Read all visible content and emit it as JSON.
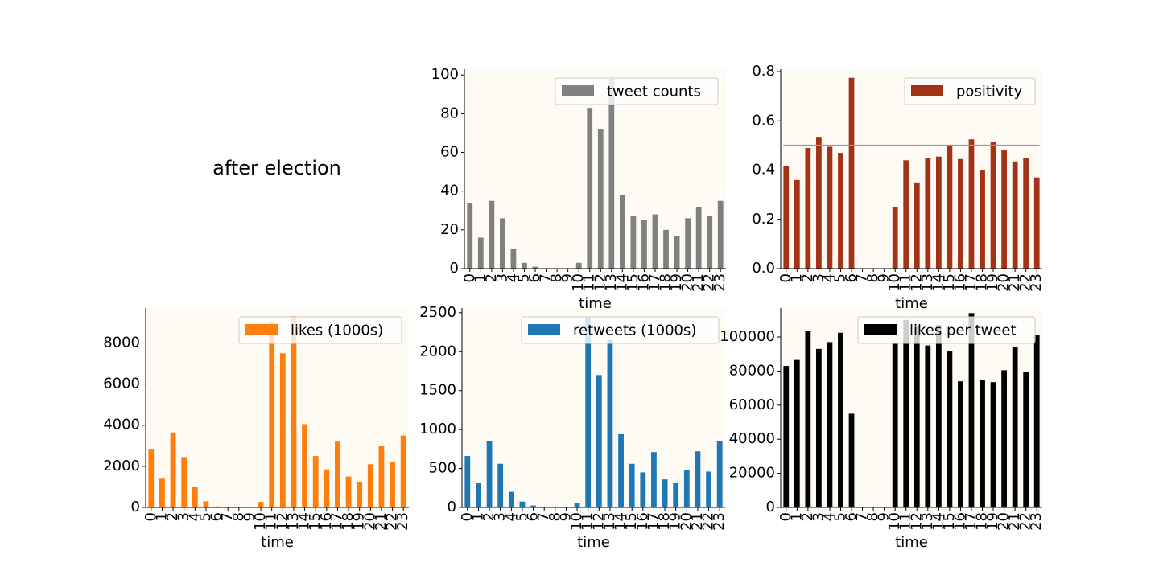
{
  "figure_title": "after election",
  "colors": {
    "plot_bg": "#fefbf5",
    "axis": "#000000",
    "counts": "#808080",
    "positivity": "#a33216",
    "likes": "#ff7f0e",
    "retweets": "#1f77b4",
    "likes_per_tweet": "#000000",
    "reference_line": "#999999"
  },
  "chart_data": [
    {
      "id": "counts",
      "type": "bar",
      "xlabel": "time",
      "legend": "tweet counts",
      "legend_position": "top-right",
      "categories": [
        "0",
        "1",
        "2",
        "3",
        "4",
        "5",
        "6",
        "7",
        "8",
        "9",
        "10",
        "11",
        "12",
        "13",
        "14",
        "15",
        "16",
        "17",
        "18",
        "19",
        "20",
        "21",
        "22",
        "23"
      ],
      "values": [
        34,
        16,
        35,
        26,
        10,
        3,
        1,
        0,
        0,
        0,
        3,
        83,
        72,
        98,
        38,
        27,
        25,
        28,
        20,
        17,
        26,
        32,
        27,
        35
      ],
      "ylim": [
        0,
        103
      ],
      "yticks": [
        0,
        20,
        40,
        60,
        80,
        100
      ],
      "ytick_labels": [
        "0",
        "20",
        "40",
        "60",
        "80",
        "100"
      ]
    },
    {
      "id": "positivity",
      "type": "bar",
      "xlabel": "time",
      "legend": "positivity",
      "legend_position": "top-right",
      "categories": [
        "0",
        "1",
        "2",
        "3",
        "4",
        "5",
        "6",
        "7",
        "8",
        "9",
        "10",
        "11",
        "12",
        "13",
        "14",
        "15",
        "16",
        "17",
        "18",
        "19",
        "20",
        "21",
        "22",
        "23"
      ],
      "values": [
        0.415,
        0.36,
        0.49,
        0.535,
        0.495,
        0.47,
        0.775,
        0,
        0,
        0,
        0.25,
        0.44,
        0.35,
        0.45,
        0.455,
        0.5,
        0.445,
        0.525,
        0.4,
        0.515,
        0.48,
        0.435,
        0.45,
        0.37
      ],
      "hline": 0.5,
      "ylim": [
        0,
        0.81
      ],
      "yticks": [
        0,
        0.2,
        0.4,
        0.6,
        0.8
      ],
      "ytick_labels": [
        "0.0",
        "0.2",
        "0.4",
        "0.6",
        "0.8"
      ]
    },
    {
      "id": "likes",
      "type": "bar",
      "xlabel": "time",
      "legend": "likes (1000s)",
      "legend_position": "top-right",
      "categories": [
        "0",
        "1",
        "2",
        "3",
        "4",
        "5",
        "6",
        "7",
        "8",
        "9",
        "10",
        "11",
        "12",
        "13",
        "14",
        "15",
        "16",
        "17",
        "18",
        "19",
        "20",
        "21",
        "22",
        "23"
      ],
      "values": [
        2850,
        1400,
        3650,
        2450,
        1000,
        300,
        50,
        0,
        0,
        0,
        270,
        9000,
        7500,
        9300,
        4050,
        2500,
        1850,
        3200,
        1500,
        1250,
        2100,
        3000,
        2200,
        3500
      ],
      "ylim": [
        0,
        9700
      ],
      "yticks": [
        0,
        2000,
        4000,
        6000,
        8000
      ],
      "ytick_labels": [
        "0",
        "2000",
        "4000",
        "6000",
        "8000"
      ]
    },
    {
      "id": "retweets",
      "type": "bar",
      "xlabel": "time",
      "legend": "retweets (1000s)",
      "legend_position": "top-right",
      "categories": [
        "0",
        "1",
        "2",
        "3",
        "4",
        "5",
        "6",
        "7",
        "8",
        "9",
        "10",
        "11",
        "12",
        "13",
        "14",
        "15",
        "16",
        "17",
        "18",
        "19",
        "20",
        "21",
        "22",
        "23"
      ],
      "values": [
        660,
        320,
        850,
        560,
        200,
        75,
        25,
        0,
        0,
        0,
        60,
        2450,
        1700,
        2150,
        940,
        560,
        450,
        710,
        360,
        320,
        475,
        720,
        460,
        850
      ],
      "ylim": [
        0,
        2560
      ],
      "yticks": [
        0,
        500,
        1000,
        1500,
        2000,
        2500
      ],
      "ytick_labels": [
        "0",
        "500",
        "1000",
        "1500",
        "2000",
        "2500"
      ]
    },
    {
      "id": "likes_per_tweet",
      "type": "bar",
      "xlabel": "time",
      "legend": "likes per tweet",
      "legend_position": "top-right",
      "categories": [
        "0",
        "1",
        "2",
        "3",
        "4",
        "5",
        "6",
        "7",
        "8",
        "9",
        "10",
        "11",
        "12",
        "13",
        "14",
        "15",
        "16",
        "17",
        "18",
        "19",
        "20",
        "21",
        "22",
        "23"
      ],
      "values": [
        83000,
        86500,
        103500,
        93000,
        97000,
        102500,
        55000,
        0,
        0,
        0,
        96000,
        110000,
        106000,
        95000,
        107000,
        91500,
        74000,
        114000,
        75000,
        73500,
        80500,
        94000,
        79500,
        101000
      ],
      "ylim": [
        0,
        117000
      ],
      "yticks": [
        0,
        20000,
        40000,
        60000,
        80000,
        100000
      ],
      "ytick_labels": [
        "0",
        "20000",
        "40000",
        "60000",
        "80000",
        "100000"
      ]
    }
  ]
}
